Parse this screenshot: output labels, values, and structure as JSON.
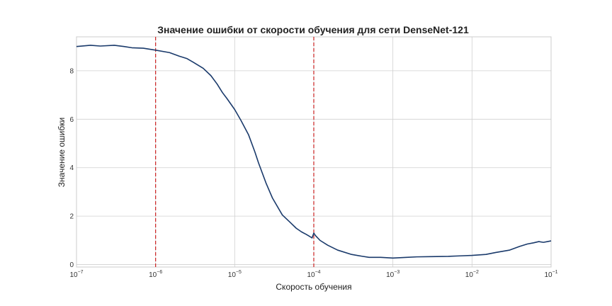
{
  "chart_data": {
    "type": "line",
    "title": "Значение ошибки от скорости обучения для сети DenseNet-121",
    "xlabel": "Скорость обучения",
    "ylabel": "Значение ошибки",
    "x_scale": "log",
    "xlim": [
      1e-07,
      0.1
    ],
    "ylim": [
      -0.1,
      9.4
    ],
    "x_ticks": [
      {
        "value": 1e-07,
        "base": "10",
        "exp": "−7"
      },
      {
        "value": 1e-06,
        "base": "10",
        "exp": "−6"
      },
      {
        "value": 1e-05,
        "base": "10",
        "exp": "−5"
      },
      {
        "value": 0.0001,
        "base": "10",
        "exp": "−4"
      },
      {
        "value": 0.001,
        "base": "10",
        "exp": "−3"
      },
      {
        "value": 0.01,
        "base": "10",
        "exp": "−2"
      },
      {
        "value": 0.1,
        "base": "10",
        "exp": "−1"
      }
    ],
    "y_ticks": [
      "0",
      "2",
      "4",
      "6",
      "8"
    ],
    "grid": true,
    "colors": {
      "line": "#1a3a6b",
      "vline": "#cc2222",
      "grid": "#d0d0d0",
      "frame": "#cccccc"
    },
    "vlines": [
      1e-06,
      0.0001
    ],
    "series": [
      {
        "x": [
          1e-07,
          1.5e-07,
          2e-07,
          3e-07,
          4e-07,
          5e-07,
          7e-07,
          1e-06,
          1.5e-06,
          2e-06,
          2.5e-06,
          3e-06,
          4e-06,
          5e-06,
          6e-06,
          7e-06,
          8e-06,
          1e-05,
          1.2e-05,
          1.5e-05,
          1.8e-05,
          2e-05,
          2.5e-05,
          3e-05,
          4e-05,
          5e-05,
          6e-05,
          7e-05,
          8e-05,
          9e-05,
          9.5e-05,
          0.0001,
          0.000105,
          0.00012,
          0.00015,
          0.0002,
          0.0003,
          0.0004,
          0.0005,
          0.0007,
          0.001,
          0.0015,
          0.002,
          0.003,
          0.005,
          0.007,
          0.01,
          0.015,
          0.02,
          0.03,
          0.04,
          0.05,
          0.06,
          0.07,
          0.08,
          0.09,
          0.1
        ],
        "y": [
          9.0,
          9.05,
          9.02,
          9.05,
          9.0,
          8.95,
          8.93,
          8.85,
          8.75,
          8.6,
          8.5,
          8.35,
          8.1,
          7.8,
          7.45,
          7.1,
          6.85,
          6.4,
          5.95,
          5.35,
          4.65,
          4.2,
          3.35,
          2.75,
          2.05,
          1.75,
          1.5,
          1.35,
          1.25,
          1.15,
          1.1,
          1.3,
          1.2,
          1.0,
          0.8,
          0.6,
          0.42,
          0.35,
          0.3,
          0.3,
          0.27,
          0.3,
          0.32,
          0.33,
          0.34,
          0.36,
          0.38,
          0.42,
          0.5,
          0.6,
          0.75,
          0.85,
          0.9,
          0.95,
          0.92,
          0.95,
          0.98
        ]
      }
    ]
  }
}
